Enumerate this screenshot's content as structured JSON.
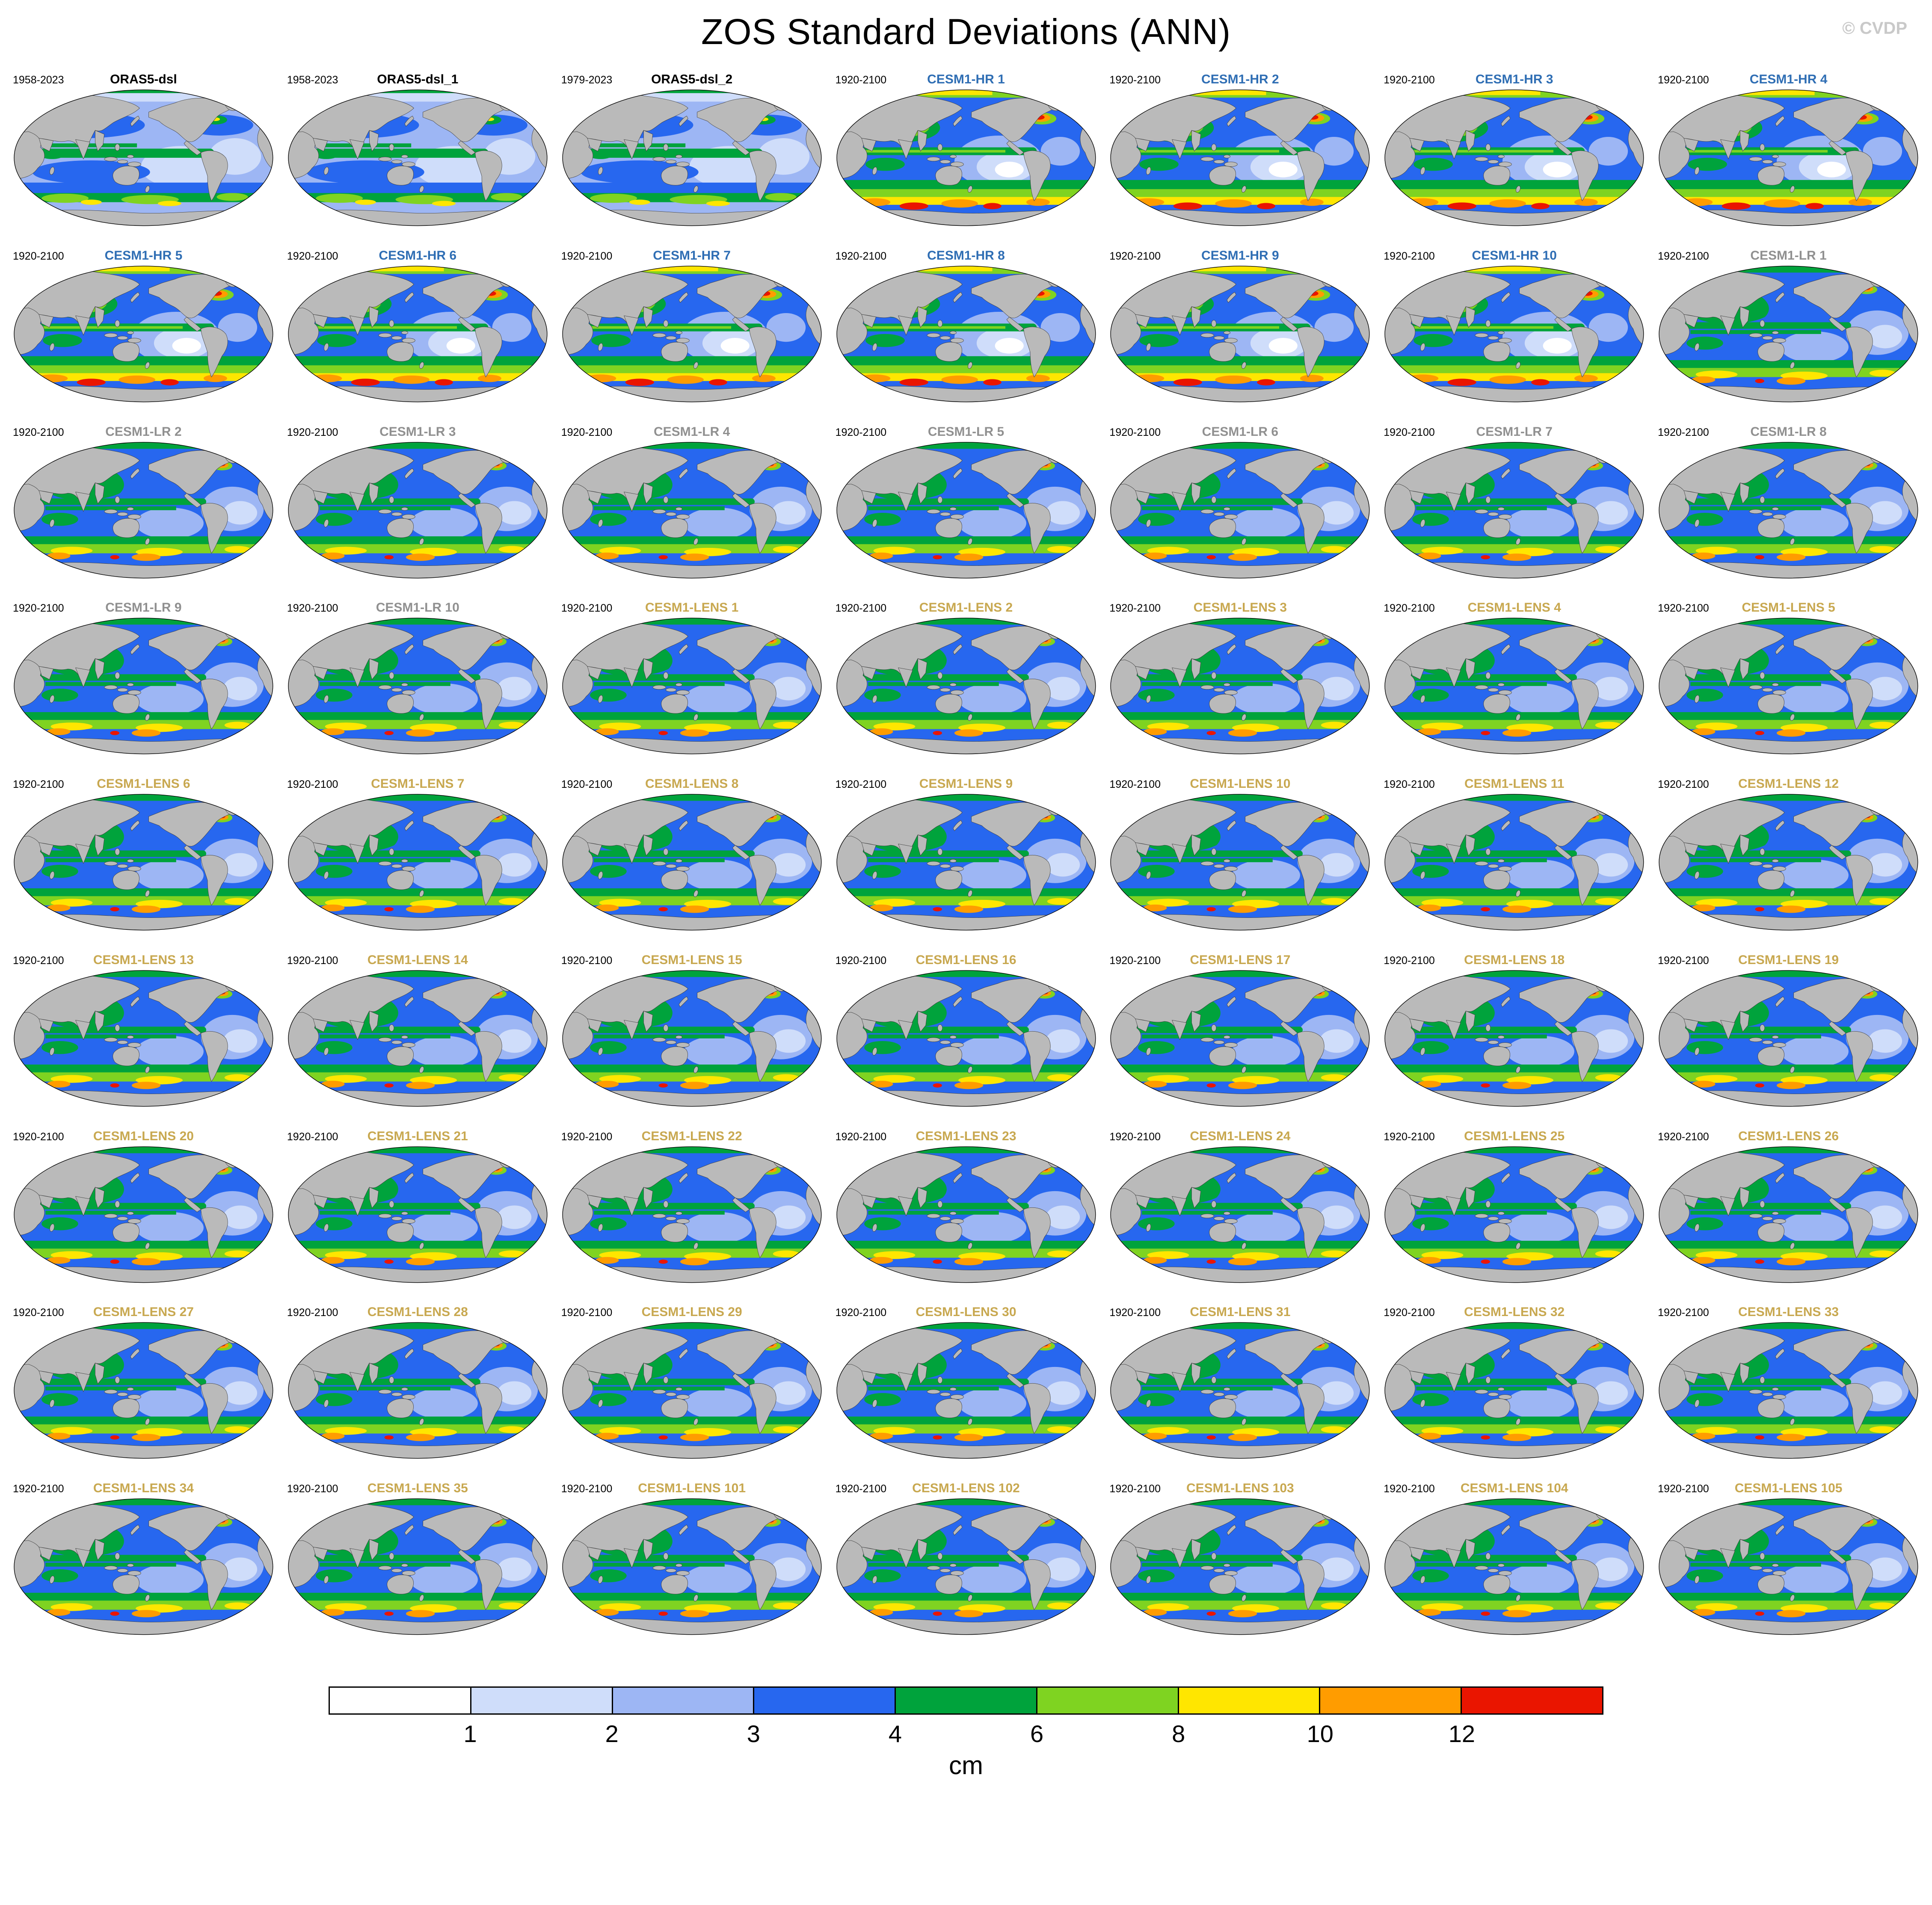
{
  "title": "ZOS Standard Deviations (ANN)",
  "watermark": "© CVDP",
  "group_colors": {
    "obs": "#000000",
    "hr": "#2f6eb4",
    "lr": "#909090",
    "lens": "#c8a850"
  },
  "colorbar": {
    "unit": "cm",
    "tick_labels": [
      "1",
      "2",
      "3",
      "4",
      "6",
      "8",
      "10",
      "12"
    ],
    "colors": [
      "#ffffff",
      "#cfddfa",
      "#9db6f4",
      "#2767ef",
      "#00a33c",
      "#7fd321",
      "#ffe600",
      "#ff9c00",
      "#ea1500"
    ]
  },
  "chart_data": {
    "type": "heatmap",
    "subtype": "global-map-panel-grid",
    "title": "ZOS Standard Deviations (ANN)",
    "statistic": "standard deviation of sea surface height (ZOS)",
    "season": "ANN",
    "unit": "cm",
    "levels_cm": [
      1,
      2,
      3,
      4,
      6,
      8,
      10,
      12
    ],
    "level_colors": [
      "#ffffff",
      "#cfddfa",
      "#9db6f4",
      "#2767ef",
      "#00a33c",
      "#7fd321",
      "#ffe600",
      "#ff9c00",
      "#ea1500"
    ],
    "grid": {
      "rows": 9,
      "cols": 7
    },
    "panels": [
      {
        "title": "ORAS5-dsl",
        "period": "1958-2023",
        "group": "obs"
      },
      {
        "title": "ORAS5-dsl_1",
        "period": "1958-2023",
        "group": "obs"
      },
      {
        "title": "ORAS5-dsl_2",
        "period": "1979-2023",
        "group": "obs"
      },
      {
        "title": "CESM1-HR 1",
        "period": "1920-2100",
        "group": "hr"
      },
      {
        "title": "CESM1-HR 2",
        "period": "1920-2100",
        "group": "hr"
      },
      {
        "title": "CESM1-HR 3",
        "period": "1920-2100",
        "group": "hr"
      },
      {
        "title": "CESM1-HR 4",
        "period": "1920-2100",
        "group": "hr"
      },
      {
        "title": "CESM1-HR 5",
        "period": "1920-2100",
        "group": "hr"
      },
      {
        "title": "CESM1-HR 6",
        "period": "1920-2100",
        "group": "hr"
      },
      {
        "title": "CESM1-HR 7",
        "period": "1920-2100",
        "group": "hr"
      },
      {
        "title": "CESM1-HR 8",
        "period": "1920-2100",
        "group": "hr"
      },
      {
        "title": "CESM1-HR 9",
        "period": "1920-2100",
        "group": "hr"
      },
      {
        "title": "CESM1-HR 10",
        "period": "1920-2100",
        "group": "hr"
      },
      {
        "title": "CESM1-LR 1",
        "period": "1920-2100",
        "group": "lr"
      },
      {
        "title": "CESM1-LR 2",
        "period": "1920-2100",
        "group": "lr"
      },
      {
        "title": "CESM1-LR 3",
        "period": "1920-2100",
        "group": "lr"
      },
      {
        "title": "CESM1-LR 4",
        "period": "1920-2100",
        "group": "lr"
      },
      {
        "title": "CESM1-LR 5",
        "period": "1920-2100",
        "group": "lr"
      },
      {
        "title": "CESM1-LR 6",
        "period": "1920-2100",
        "group": "lr"
      },
      {
        "title": "CESM1-LR 7",
        "period": "1920-2100",
        "group": "lr"
      },
      {
        "title": "CESM1-LR 8",
        "period": "1920-2100",
        "group": "lr"
      },
      {
        "title": "CESM1-LR 9",
        "period": "1920-2100",
        "group": "lr"
      },
      {
        "title": "CESM1-LR 10",
        "period": "1920-2100",
        "group": "lr"
      },
      {
        "title": "CESM1-LENS 1",
        "period": "1920-2100",
        "group": "lens"
      },
      {
        "title": "CESM1-LENS 2",
        "period": "1920-2100",
        "group": "lens"
      },
      {
        "title": "CESM1-LENS 3",
        "period": "1920-2100",
        "group": "lens"
      },
      {
        "title": "CESM1-LENS 4",
        "period": "1920-2100",
        "group": "lens"
      },
      {
        "title": "CESM1-LENS 5",
        "period": "1920-2100",
        "group": "lens"
      },
      {
        "title": "CESM1-LENS 6",
        "period": "1920-2100",
        "group": "lens"
      },
      {
        "title": "CESM1-LENS 7",
        "period": "1920-2100",
        "group": "lens"
      },
      {
        "title": "CESM1-LENS 8",
        "period": "1920-2100",
        "group": "lens"
      },
      {
        "title": "CESM1-LENS 9",
        "period": "1920-2100",
        "group": "lens"
      },
      {
        "title": "CESM1-LENS 10",
        "period": "1920-2100",
        "group": "lens"
      },
      {
        "title": "CESM1-LENS 11",
        "period": "1920-2100",
        "group": "lens"
      },
      {
        "title": "CESM1-LENS 12",
        "period": "1920-2100",
        "group": "lens"
      },
      {
        "title": "CESM1-LENS 13",
        "period": "1920-2100",
        "group": "lens"
      },
      {
        "title": "CESM1-LENS 14",
        "period": "1920-2100",
        "group": "lens"
      },
      {
        "title": "CESM1-LENS 15",
        "period": "1920-2100",
        "group": "lens"
      },
      {
        "title": "CESM1-LENS 16",
        "period": "1920-2100",
        "group": "lens"
      },
      {
        "title": "CESM1-LENS 17",
        "period": "1920-2100",
        "group": "lens"
      },
      {
        "title": "CESM1-LENS 18",
        "period": "1920-2100",
        "group": "lens"
      },
      {
        "title": "CESM1-LENS 19",
        "period": "1920-2100",
        "group": "lens"
      },
      {
        "title": "CESM1-LENS 20",
        "period": "1920-2100",
        "group": "lens"
      },
      {
        "title": "CESM1-LENS 21",
        "period": "1920-2100",
        "group": "lens"
      },
      {
        "title": "CESM1-LENS 22",
        "period": "1920-2100",
        "group": "lens"
      },
      {
        "title": "CESM1-LENS 23",
        "period": "1920-2100",
        "group": "lens"
      },
      {
        "title": "CESM1-LENS 24",
        "period": "1920-2100",
        "group": "lens"
      },
      {
        "title": "CESM1-LENS 25",
        "period": "1920-2100",
        "group": "lens"
      },
      {
        "title": "CESM1-LENS 26",
        "period": "1920-2100",
        "group": "lens"
      },
      {
        "title": "CESM1-LENS 27",
        "period": "1920-2100",
        "group": "lens"
      },
      {
        "title": "CESM1-LENS 28",
        "period": "1920-2100",
        "group": "lens"
      },
      {
        "title": "CESM1-LENS 29",
        "period": "1920-2100",
        "group": "lens"
      },
      {
        "title": "CESM1-LENS 30",
        "period": "1920-2100",
        "group": "lens"
      },
      {
        "title": "CESM1-LENS 31",
        "period": "1920-2100",
        "group": "lens"
      },
      {
        "title": "CESM1-LENS 32",
        "period": "1920-2100",
        "group": "lens"
      },
      {
        "title": "CESM1-LENS 33",
        "period": "1920-2100",
        "group": "lens"
      },
      {
        "title": "CESM1-LENS 34",
        "period": "1920-2100",
        "group": "lens"
      },
      {
        "title": "CESM1-LENS 35",
        "period": "1920-2100",
        "group": "lens"
      },
      {
        "title": "CESM1-LENS 101",
        "period": "1920-2100",
        "group": "lens"
      },
      {
        "title": "CESM1-LENS 102",
        "period": "1920-2100",
        "group": "lens"
      },
      {
        "title": "CESM1-LENS 103",
        "period": "1920-2100",
        "group": "lens"
      },
      {
        "title": "CESM1-LENS 104",
        "period": "1920-2100",
        "group": "lens"
      },
      {
        "title": "CESM1-LENS 105",
        "period": "1920-2100",
        "group": "lens"
      }
    ]
  }
}
